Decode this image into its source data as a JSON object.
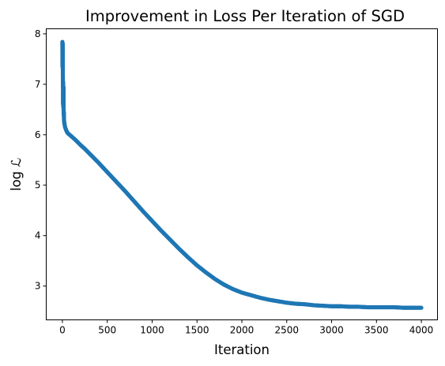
{
  "chart_data": {
    "type": "line",
    "title": "Improvement in Loss Per Iteration of SGD",
    "xlabel": "Iteration",
    "ylabel": "log ℒ",
    "xlim": [
      -180,
      4180
    ],
    "ylim": [
      2.33,
      8.1
    ],
    "xticks": [
      "0",
      "500",
      "1000",
      "1500",
      "2000",
      "2500",
      "3000",
      "3500",
      "4000"
    ],
    "yticks": [
      "3",
      "4",
      "5",
      "6",
      "7",
      "8"
    ],
    "grid": false,
    "legend": "none",
    "series": [
      {
        "color": "#1f77b4",
        "marker": "circle",
        "x": [
          0,
          1,
          2,
          3,
          4,
          5,
          6,
          7,
          8,
          9,
          10,
          12,
          14,
          16,
          18,
          20,
          25,
          30,
          40,
          50,
          60,
          80,
          100,
          150,
          200,
          250,
          300,
          400,
          500,
          600,
          700,
          800,
          900,
          1000,
          1100,
          1200,
          1300,
          1400,
          1500,
          1600,
          1700,
          1800,
          1900,
          2000,
          2100,
          2200,
          2300,
          2400,
          2500,
          2600,
          2700,
          2800,
          2900,
          3000,
          3100,
          3200,
          3300,
          3400,
          3500,
          3600,
          3700,
          3800,
          3900,
          4000
        ],
        "y": [
          7.84,
          7.35,
          7.82,
          7.72,
          7.55,
          7.2,
          6.95,
          7.05,
          6.6,
          6.85,
          6.55,
          6.95,
          6.4,
          6.45,
          6.3,
          6.25,
          6.2,
          6.15,
          6.1,
          6.06,
          6.03,
          6.0,
          5.97,
          5.89,
          5.8,
          5.72,
          5.63,
          5.45,
          5.26,
          5.07,
          4.88,
          4.68,
          4.48,
          4.29,
          4.1,
          3.92,
          3.74,
          3.57,
          3.41,
          3.27,
          3.14,
          3.03,
          2.94,
          2.87,
          2.82,
          2.77,
          2.73,
          2.7,
          2.67,
          2.65,
          2.64,
          2.62,
          2.61,
          2.6,
          2.6,
          2.59,
          2.59,
          2.58,
          2.58,
          2.58,
          2.58,
          2.57,
          2.57,
          2.57
        ]
      }
    ]
  }
}
